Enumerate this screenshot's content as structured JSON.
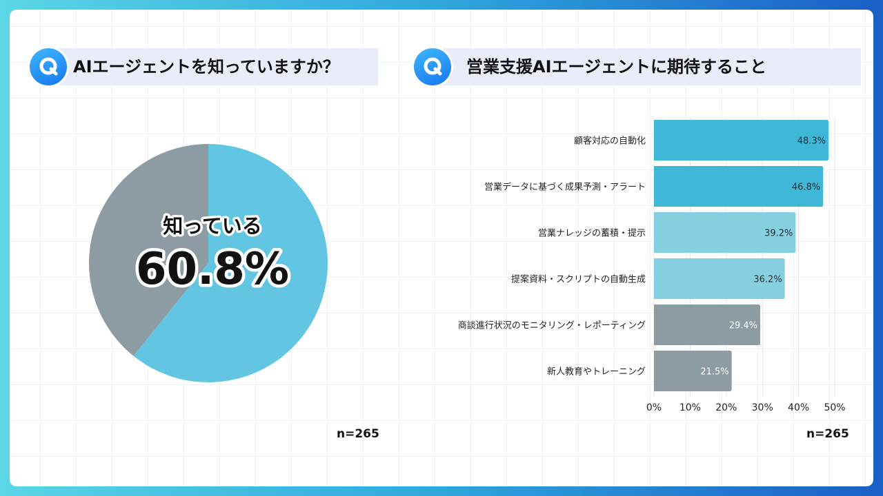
{
  "left_panel": {
    "question": "AIエージェントを知っていますか？",
    "n_label": "n=265"
  },
  "right_panel": {
    "question": "営業支援AIエージェントに期待すること",
    "n_label": "n=265"
  },
  "chart_data": [
    {
      "type": "pie",
      "slices": [
        {
          "label": "知っている",
          "value": 60.8,
          "color": "#62c6e2"
        },
        {
          "label": "",
          "value": 39.2,
          "color": "#8d9ba3"
        }
      ],
      "center_label": "知っている",
      "center_value": "60.8%"
    },
    {
      "type": "bar",
      "orientation": "horizontal",
      "categories": [
        "顧客対応の自動化",
        "営業データに基づく成果予測・アラート",
        "営業ナレッジの蓄積・提示",
        "提案資料・スクリプトの自動生成",
        "商談進行状況のモニタリング・レポーティング",
        "新人教育やトレーニング"
      ],
      "values": [
        48.3,
        46.8,
        39.2,
        36.2,
        29.4,
        21.5
      ],
      "value_labels": [
        "48.3%",
        "46.8%",
        "39.2%",
        "36.2%",
        "29.4%",
        "21.5%"
      ],
      "colors": [
        "#3fb8d8",
        "#3fb8d8",
        "#86cfe0",
        "#86cfe0",
        "#8d9ba3",
        "#8d9ba3"
      ],
      "label_colors": [
        "#1d2b33",
        "#1d2b33",
        "#1d2b33",
        "#1d2b33",
        "#ffffff",
        "#ffffff"
      ],
      "xlim": [
        0,
        50
      ],
      "xticks": [
        "0%",
        "10%",
        "20%",
        "30%",
        "40%",
        "50%"
      ],
      "grid": true
    }
  ]
}
